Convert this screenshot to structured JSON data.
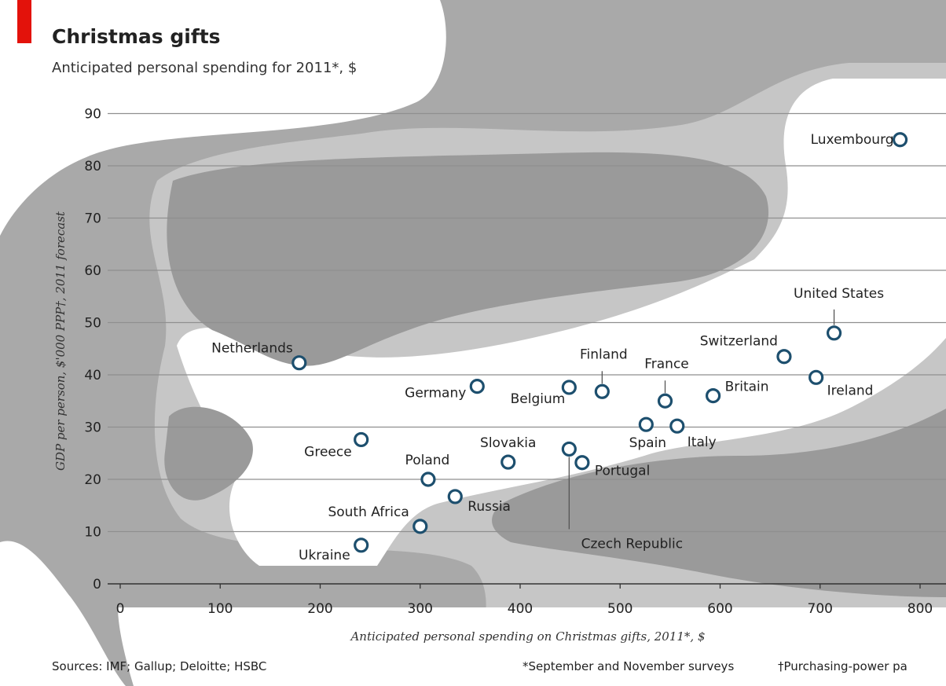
{
  "chart_data": {
    "type": "scatter",
    "title": "Christmas gifts",
    "subtitle": "Anticipated personal spending for 2011*, $",
    "xlabel": "Anticipated personal spending on Christmas gifts, 2011*, $",
    "ylabel": "GDP per person, $'000 PPP†, 2011 forecast",
    "xlim": [
      0,
      800
    ],
    "ylim": [
      0,
      90
    ],
    "xticks": [
      "0",
      "100",
      "200",
      "300",
      "400",
      "500",
      "600",
      "700",
      "800"
    ],
    "yticks": [
      "0",
      "10",
      "20",
      "30",
      "40",
      "50",
      "60",
      "70",
      "80",
      "90"
    ],
    "grid": true,
    "colors": {
      "marker": "#1d4f6e",
      "accent": "#e3120b",
      "grid": "#8f8f8f"
    },
    "points": [
      {
        "label": "Luxembourg",
        "x": 780,
        "y": 85
      },
      {
        "label": "United States",
        "x": 714,
        "y": 48
      },
      {
        "label": "Switzerland",
        "x": 664,
        "y": 43.5
      },
      {
        "label": "Ireland",
        "x": 696,
        "y": 39.5
      },
      {
        "label": "Britain",
        "x": 593,
        "y": 36
      },
      {
        "label": "France",
        "x": 545,
        "y": 35
      },
      {
        "label": "Finland",
        "x": 482,
        "y": 36.8
      },
      {
        "label": "Belgium",
        "x": 449,
        "y": 37.6
      },
      {
        "label": "Germany",
        "x": 357,
        "y": 37.8
      },
      {
        "label": "Netherlands",
        "x": 179,
        "y": 42.3
      },
      {
        "label": "Spain",
        "x": 526,
        "y": 30.5
      },
      {
        "label": "Italy",
        "x": 557,
        "y": 30.2
      },
      {
        "label": "Slovakia",
        "x": 388,
        "y": 23.3
      },
      {
        "label": "Czech Republic",
        "x": 449,
        "y": 25.8
      },
      {
        "label": "Portugal",
        "x": 462,
        "y": 23.2
      },
      {
        "label": "Greece",
        "x": 241,
        "y": 27.6
      },
      {
        "label": "Poland",
        "x": 308,
        "y": 20
      },
      {
        "label": "Russia",
        "x": 335,
        "y": 16.7
      },
      {
        "label": "South Africa",
        "x": 300,
        "y": 11
      },
      {
        "label": "Ukraine",
        "x": 241,
        "y": 7.4
      }
    ],
    "sources": "Sources: IMF; Gallup; Deloitte; HSBC",
    "footnote_1": "*September and November surveys",
    "footnote_2": "†Purchasing-power pa"
  }
}
